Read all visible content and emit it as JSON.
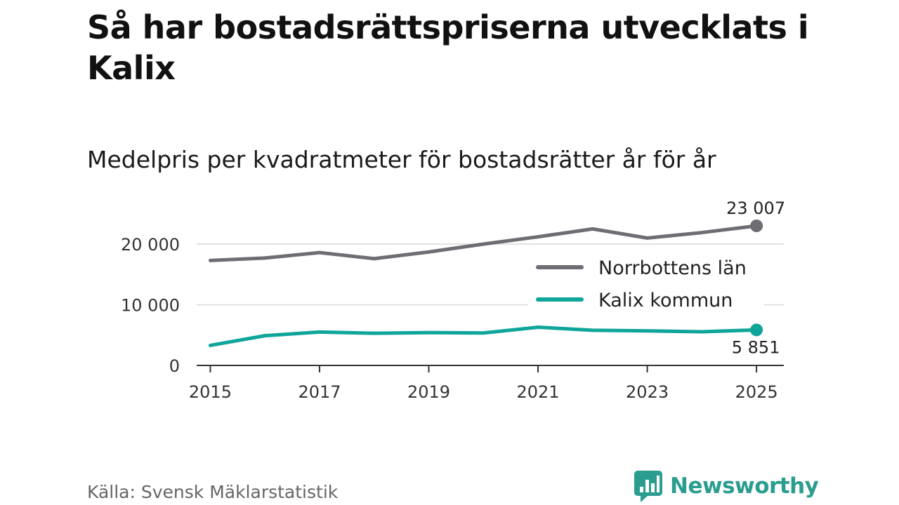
{
  "title": "Så har bostadsrättspriserna utvecklats i Kalix",
  "subtitle": "Medelpris per kvadratmeter för bostadsrätter år för år",
  "source": "Källa: Svensk Mäklarstatistik",
  "brand": {
    "name": "Newsworthy",
    "color": "#2a9d8f"
  },
  "chart_data": {
    "type": "line",
    "title": "Så har bostadsrättspriserna utvecklats i Kalix",
    "subtitle": "Medelpris per kvadratmeter för bostadsrätter år för år",
    "xlabel": "",
    "ylabel": "",
    "x": [
      2015,
      2016,
      2017,
      2018,
      2019,
      2020,
      2021,
      2022,
      2023,
      2024,
      2025
    ],
    "xlim": [
      2014.75,
      2025.5
    ],
    "ylim": [
      0,
      23007
    ],
    "x_ticks": [
      2015,
      2017,
      2019,
      2021,
      2023,
      2025
    ],
    "x_tick_labels": [
      "2015",
      "2017",
      "2019",
      "2021",
      "2023",
      "2025"
    ],
    "y_ticks": [
      0,
      10000,
      20000
    ],
    "y_tick_labels": [
      "0",
      "10 000",
      "20 000"
    ],
    "grid": true,
    "legend_position": "right",
    "series": [
      {
        "name": "Norrbottens län",
        "color": "#6e6d73",
        "values": [
          17300,
          17700,
          18600,
          17600,
          18700,
          20000,
          21200,
          22500,
          21000,
          21900,
          23007
        ],
        "end_label": "23 007"
      },
      {
        "name": "Kalix kommun",
        "color": "#0fa59a",
        "values": [
          3300,
          4900,
          5500,
          5300,
          5400,
          5350,
          6300,
          5800,
          5700,
          5550,
          5851
        ],
        "end_label": "5 851"
      }
    ]
  }
}
